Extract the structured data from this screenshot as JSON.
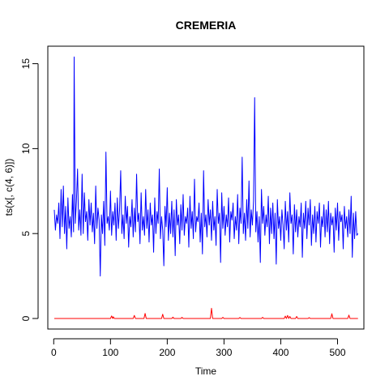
{
  "chart_data": {
    "type": "line",
    "title": "CREMERIA",
    "xlabel": "Time",
    "ylabel": "ts(x[, c(4, 6)])",
    "xlim": [
      -10.4,
      546.4
    ],
    "ylim": [
      -0.62,
      16.03
    ],
    "x_ticks": [
      0,
      100,
      200,
      300,
      400,
      500
    ],
    "y_ticks": [
      0,
      5,
      10,
      15
    ],
    "grid": false,
    "legend": "none",
    "series": [
      {
        "color": "#0000ff",
        "points": [
          [
            1,
            6.4
          ],
          [
            3,
            5.2
          ],
          [
            5,
            6.1
          ],
          [
            7,
            5.6
          ],
          [
            9,
            6.8
          ],
          [
            11,
            4.7
          ],
          [
            13,
            7.6
          ],
          [
            15,
            5.4
          ],
          [
            17,
            7.8
          ],
          [
            19,
            5.0
          ],
          [
            21,
            6.6
          ],
          [
            23,
            4.1
          ],
          [
            25,
            7.1
          ],
          [
            27,
            5.3
          ],
          [
            29,
            6.0
          ],
          [
            31,
            4.8
          ],
          [
            33,
            7.3
          ],
          [
            35,
            5.1
          ],
          [
            36,
            15.4
          ],
          [
            38,
            5.6
          ],
          [
            40,
            6.9
          ],
          [
            42,
            8.8
          ],
          [
            44,
            5.2
          ],
          [
            46,
            6.4
          ],
          [
            48,
            4.9
          ],
          [
            50,
            8.5
          ],
          [
            52,
            5.0
          ],
          [
            54,
            7.4
          ],
          [
            56,
            5.7
          ],
          [
            58,
            6.3
          ],
          [
            60,
            4.6
          ],
          [
            62,
            7.0
          ],
          [
            64,
            5.5
          ],
          [
            66,
            6.8
          ],
          [
            68,
            5.1
          ],
          [
            70,
            6.2
          ],
          [
            72,
            4.4
          ],
          [
            74,
            7.8
          ],
          [
            76,
            5.3
          ],
          [
            78,
            6.5
          ],
          [
            80,
            5.8
          ],
          [
            82,
            2.5
          ],
          [
            84,
            6.1
          ],
          [
            86,
            5.0
          ],
          [
            88,
            6.9
          ],
          [
            90,
            4.3
          ],
          [
            92,
            9.8
          ],
          [
            94,
            5.6
          ],
          [
            96,
            6.0
          ],
          [
            98,
            5.2
          ],
          [
            100,
            7.5
          ],
          [
            102,
            4.9
          ],
          [
            104,
            6.3
          ],
          [
            106,
            5.5
          ],
          [
            108,
            6.8
          ],
          [
            110,
            4.6
          ],
          [
            112,
            7.1
          ],
          [
            114,
            5.3
          ],
          [
            116,
            6.4
          ],
          [
            118,
            8.7
          ],
          [
            120,
            5.0
          ],
          [
            122,
            6.1
          ],
          [
            124,
            4.7
          ],
          [
            126,
            7.2
          ],
          [
            128,
            5.6
          ],
          [
            130,
            6.6
          ],
          [
            132,
            4.2
          ],
          [
            134,
            6.0
          ],
          [
            136,
            5.4
          ],
          [
            138,
            7.0
          ],
          [
            140,
            4.8
          ],
          [
            142,
            6.5
          ],
          [
            144,
            5.1
          ],
          [
            146,
            8.5
          ],
          [
            148,
            5.7
          ],
          [
            150,
            6.2
          ],
          [
            152,
            4.4
          ],
          [
            154,
            7.4
          ],
          [
            156,
            5.2
          ],
          [
            158,
            6.0
          ],
          [
            160,
            4.9
          ],
          [
            162,
            7.6
          ],
          [
            164,
            5.3
          ],
          [
            166,
            6.4
          ],
          [
            168,
            4.5
          ],
          [
            170,
            6.8
          ],
          [
            172,
            5.5
          ],
          [
            174,
            6.1
          ],
          [
            176,
            3.9
          ],
          [
            178,
            7.1
          ],
          [
            180,
            5.0
          ],
          [
            182,
            6.3
          ],
          [
            184,
            5.6
          ],
          [
            186,
            8.8
          ],
          [
            188,
            4.7
          ],
          [
            190,
            6.0
          ],
          [
            192,
            5.2
          ],
          [
            194,
            3.1
          ],
          [
            196,
            6.6
          ],
          [
            198,
            5.4
          ],
          [
            200,
            7.7
          ],
          [
            202,
            4.6
          ],
          [
            204,
            6.2
          ],
          [
            206,
            5.0
          ],
          [
            208,
            6.9
          ],
          [
            210,
            4.8
          ],
          [
            212,
            6.4
          ],
          [
            214,
            3.7
          ],
          [
            216,
            7.0
          ],
          [
            218,
            5.5
          ],
          [
            220,
            6.1
          ],
          [
            222,
            4.4
          ],
          [
            224,
            6.7
          ],
          [
            226,
            5.2
          ],
          [
            228,
            7.3
          ],
          [
            230,
            4.9
          ],
          [
            232,
            6.0
          ],
          [
            234,
            5.6
          ],
          [
            236,
            6.5
          ],
          [
            238,
            4.2
          ],
          [
            240,
            7.2
          ],
          [
            242,
            5.3
          ],
          [
            244,
            6.3
          ],
          [
            246,
            4.7
          ],
          [
            248,
            8.2
          ],
          [
            250,
            5.1
          ],
          [
            252,
            6.0
          ],
          [
            254,
            5.7
          ],
          [
            256,
            6.8
          ],
          [
            258,
            4.5
          ],
          [
            260,
            6.2
          ],
          [
            262,
            3.8
          ],
          [
            264,
            8.7
          ],
          [
            266,
            5.4
          ],
          [
            268,
            6.1
          ],
          [
            270,
            4.8
          ],
          [
            272,
            7.0
          ],
          [
            274,
            5.5
          ],
          [
            276,
            6.4
          ],
          [
            278,
            4.6
          ],
          [
            280,
            6.9
          ],
          [
            282,
            5.2
          ],
          [
            284,
            6.0
          ],
          [
            286,
            4.3
          ],
          [
            288,
            7.6
          ],
          [
            290,
            5.6
          ],
          [
            292,
            6.2
          ],
          [
            294,
            3.3
          ],
          [
            296,
            7.4
          ],
          [
            298,
            5.3
          ],
          [
            300,
            6.6
          ],
          [
            302,
            4.9
          ],
          [
            304,
            6.1
          ],
          [
            306,
            5.4
          ],
          [
            308,
            7.1
          ],
          [
            310,
            4.5
          ],
          [
            312,
            6.3
          ],
          [
            314,
            5.8
          ],
          [
            316,
            6.8
          ],
          [
            318,
            4.7
          ],
          [
            320,
            6.0
          ],
          [
            322,
            5.2
          ],
          [
            324,
            7.3
          ],
          [
            326,
            4.4
          ],
          [
            328,
            6.5
          ],
          [
            330,
            5.6
          ],
          [
            332,
            9.5
          ],
          [
            334,
            5.0
          ],
          [
            336,
            6.2
          ],
          [
            338,
            4.6
          ],
          [
            340,
            7.0
          ],
          [
            342,
            5.3
          ],
          [
            344,
            8.1
          ],
          [
            346,
            4.8
          ],
          [
            348,
            6.4
          ],
          [
            350,
            5.5
          ],
          [
            352,
            6.9
          ],
          [
            354,
            13.0
          ],
          [
            356,
            5.1
          ],
          [
            358,
            6.3
          ],
          [
            360,
            4.5
          ],
          [
            362,
            6.0
          ],
          [
            364,
            3.3
          ],
          [
            366,
            7.6
          ],
          [
            368,
            5.6
          ],
          [
            370,
            6.6
          ],
          [
            372,
            4.9
          ],
          [
            374,
            6.1
          ],
          [
            376,
            5.4
          ],
          [
            378,
            7.2
          ],
          [
            380,
            4.4
          ],
          [
            382,
            6.5
          ],
          [
            384,
            5.0
          ],
          [
            386,
            6.8
          ],
          [
            388,
            4.7
          ],
          [
            390,
            6.2
          ],
          [
            392,
            3.2
          ],
          [
            394,
            7.0
          ],
          [
            396,
            5.3
          ],
          [
            398,
            6.0
          ],
          [
            400,
            4.6
          ],
          [
            402,
            6.4
          ],
          [
            404,
            5.5
          ],
          [
            406,
            4.1
          ],
          [
            408,
            6.9
          ],
          [
            410,
            5.2
          ],
          [
            412,
            6.3
          ],
          [
            414,
            4.5
          ],
          [
            416,
            7.4
          ],
          [
            418,
            5.6
          ],
          [
            420,
            6.1
          ],
          [
            422,
            3.8
          ],
          [
            424,
            6.7
          ],
          [
            426,
            5.1
          ],
          [
            428,
            6.4
          ],
          [
            430,
            4.8
          ],
          [
            432,
            6.0
          ],
          [
            434,
            5.4
          ],
          [
            436,
            6.8
          ],
          [
            438,
            3.6
          ],
          [
            440,
            6.2
          ],
          [
            442,
            5.3
          ],
          [
            444,
            6.9
          ],
          [
            446,
            4.7
          ],
          [
            448,
            6.5
          ],
          [
            450,
            5.5
          ],
          [
            452,
            7.0
          ],
          [
            454,
            4.3
          ],
          [
            456,
            6.1
          ],
          [
            458,
            5.0
          ],
          [
            460,
            6.6
          ],
          [
            462,
            4.5
          ],
          [
            464,
            6.3
          ],
          [
            466,
            5.6
          ],
          [
            468,
            6.8
          ],
          [
            470,
            4.2
          ],
          [
            472,
            6.0
          ],
          [
            474,
            5.4
          ],
          [
            476,
            6.7
          ],
          [
            478,
            4.8
          ],
          [
            480,
            6.4
          ],
          [
            482,
            5.1
          ],
          [
            484,
            6.9
          ],
          [
            486,
            4.4
          ],
          [
            488,
            6.2
          ],
          [
            490,
            5.5
          ],
          [
            492,
            6.0
          ],
          [
            494,
            3.9
          ],
          [
            496,
            6.5
          ],
          [
            498,
            5.2
          ],
          [
            500,
            6.8
          ],
          [
            502,
            4.6
          ],
          [
            504,
            6.3
          ],
          [
            506,
            5.7
          ],
          [
            508,
            6.1
          ],
          [
            510,
            4.1
          ],
          [
            512,
            6.6
          ],
          [
            514,
            5.3
          ],
          [
            516,
            6.0
          ],
          [
            518,
            4.8
          ],
          [
            520,
            6.4
          ],
          [
            522,
            5.0
          ],
          [
            524,
            7.2
          ],
          [
            526,
            3.6
          ],
          [
            528,
            6.2
          ],
          [
            530,
            4.7
          ],
          [
            532,
            6.3
          ],
          [
            534,
            4.9
          ],
          [
            536,
            5.0
          ]
        ]
      },
      {
        "color": "#ff0000",
        "points": [
          [
            1,
            0.0
          ],
          [
            100,
            0.0
          ],
          [
            102,
            0.15
          ],
          [
            104,
            0.0
          ],
          [
            105,
            0.1
          ],
          [
            107,
            0.0
          ],
          [
            140,
            0.0
          ],
          [
            142,
            0.18
          ],
          [
            144,
            0.0
          ],
          [
            159,
            0.0
          ],
          [
            161,
            0.3
          ],
          [
            163,
            0.0
          ],
          [
            190,
            0.0
          ],
          [
            192,
            0.25
          ],
          [
            194,
            0.0
          ],
          [
            208,
            0.0
          ],
          [
            210,
            0.08
          ],
          [
            212,
            0.0
          ],
          [
            224,
            0.0
          ],
          [
            226,
            0.07
          ],
          [
            228,
            0.0
          ],
          [
            276,
            0.0
          ],
          [
            278,
            0.6
          ],
          [
            280,
            0.0
          ],
          [
            296,
            0.0
          ],
          [
            298,
            0.07
          ],
          [
            300,
            0.0
          ],
          [
            326,
            0.0
          ],
          [
            328,
            0.06
          ],
          [
            330,
            0.0
          ],
          [
            366,
            0.0
          ],
          [
            368,
            0.07
          ],
          [
            370,
            0.0
          ],
          [
            406,
            0.0
          ],
          [
            408,
            0.14
          ],
          [
            410,
            0.0
          ],
          [
            412,
            0.18
          ],
          [
            414,
            0.0
          ],
          [
            416,
            0.12
          ],
          [
            418,
            0.0
          ],
          [
            426,
            0.0
          ],
          [
            428,
            0.12
          ],
          [
            430,
            0.0
          ],
          [
            448,
            0.0
          ],
          [
            450,
            0.05
          ],
          [
            452,
            0.0
          ],
          [
            488,
            0.0
          ],
          [
            490,
            0.28
          ],
          [
            492,
            0.0
          ],
          [
            518,
            0.0
          ],
          [
            520,
            0.2
          ],
          [
            522,
            0.0
          ],
          [
            536,
            0.0
          ]
        ]
      }
    ]
  }
}
